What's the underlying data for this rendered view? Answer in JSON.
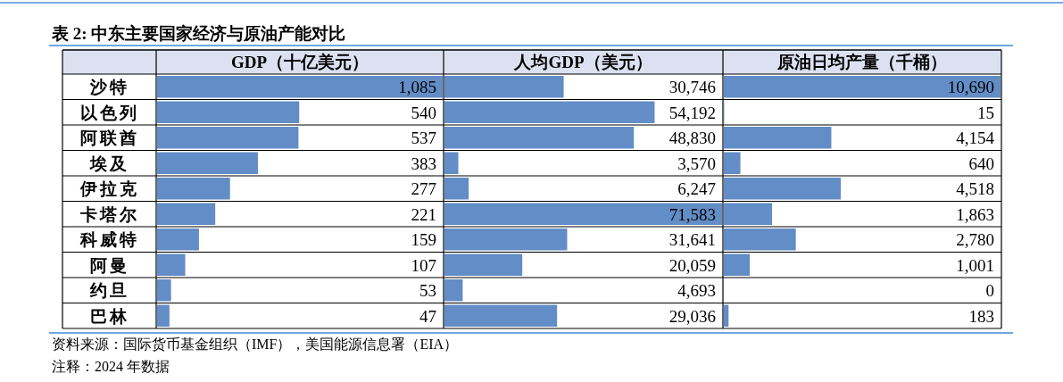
{
  "chart_data": [
    {
      "type": "bar",
      "orientation": "horizontal",
      "title": "GDP（十亿美元）",
      "categories": [
        "沙特",
        "以色列",
        "阿联酋",
        "埃及",
        "伊拉克",
        "卡塔尔",
        "科威特",
        "阿曼",
        "约旦",
        "巴林"
      ],
      "color": "#628dc6",
      "tick_labels": "y",
      "values": [
        1085,
        540,
        537,
        383,
        277,
        221,
        159,
        107,
        53,
        47
      ],
      "value_labels": [
        "1,085",
        "540",
        "537",
        "383",
        "277",
        "221",
        "159",
        "107",
        "53",
        "47"
      ],
      "annotations": [
        "表 2:  中东主要国家经济与原油产能对比",
        "资料来源：国际货币基金组织（IMF），美国能源信息署（EIA）",
        "注释：2024 年数据"
      ]
    },
    {
      "type": "bar",
      "orientation": "horizontal",
      "title": "人均GDP（美元）",
      "categories": [
        null,
        null,
        null,
        null,
        null,
        null,
        null,
        null,
        null,
        null
      ],
      "color": "#628dc6",
      "values": [
        30746,
        54192,
        48830,
        3570,
        6247,
        71583,
        31641,
        20059,
        4693,
        29036
      ],
      "value_labels": [
        "30,746",
        "54,192",
        "48,830",
        "3,570",
        "6,247",
        "71,583",
        "31,641",
        "20,059",
        "4,693",
        "29,036"
      ]
    },
    {
      "type": "bar",
      "orientation": "horizontal",
      "title": "原油日均产量（千桶）",
      "categories": [
        null,
        null,
        null,
        null,
        null,
        null,
        null,
        null,
        null,
        null
      ],
      "color": "#628dc6",
      "values": [
        10690,
        15,
        4154,
        640,
        4518,
        1863,
        2780,
        1001,
        0,
        183
      ],
      "value_labels": [
        "10,690",
        "15",
        "4,154",
        "640",
        "4,518",
        "1,863",
        "2,780",
        "1,001",
        "0",
        "183"
      ]
    }
  ]
}
